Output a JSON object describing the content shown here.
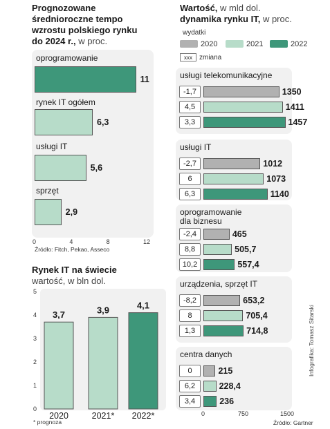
{
  "colors": {
    "y2020": "#b1b1b1",
    "y2021": "#b7dcc9",
    "y2022": "#3e977a",
    "panel": "#f1f1f1"
  },
  "left_top": {
    "title_line1": "Prognozowane",
    "title_line2": "średnioroczne tempo",
    "title_line3": "wzrostu polskiego rynku",
    "title_line4": "do 2024 r.,",
    "title_unit": " w proc.",
    "source": "Źródło: Fitch, Pekao, Asseco"
  },
  "left_bottom": {
    "title": "Rynek IT na świecie",
    "subtitle": "wartość, w bln dol.",
    "footnote": "* prognoza"
  },
  "right": {
    "title_line1": "Wartość,",
    "title_line1_unit": " w mld dol.",
    "title_line2": "dynamika rynku IT,",
    "title_line2_unit": " w proc.",
    "legend_header": "wydatki",
    "legend_2020": "2020",
    "legend_2021": "2021",
    "legend_2022": "2022",
    "legend_change_box": "xxx",
    "legend_change": "zmiana",
    "source": "Źródło: Gartner",
    "credit": "Infografika: Tomasz Sitarski"
  },
  "chart_data": [
    {
      "type": "bar",
      "orientation": "horizontal",
      "title": "Prognozowane średnioroczne tempo wzrostu polskiego rynku do 2024 r., w proc.",
      "categories": [
        "oprogramowanie",
        "rynek IT ogółem",
        "usługi IT",
        "sprzęt"
      ],
      "values": [
        11,
        6.3,
        5.6,
        2.9
      ],
      "value_labels": [
        "11",
        "6,3",
        "5,6",
        "2,9"
      ],
      "xlim": [
        0,
        12
      ],
      "xticks": [
        0,
        4,
        8,
        12
      ],
      "highlight_color": "#3e977a",
      "bar_color": "#b7dcc9"
    },
    {
      "type": "bar",
      "orientation": "vertical",
      "title": "Rynek IT na świecie",
      "subtitle": "wartość, w bln dol.",
      "categories": [
        "2020",
        "2021*",
        "2022*"
      ],
      "values": [
        3.7,
        3.9,
        4.1
      ],
      "value_labels": [
        "3,7",
        "3,9",
        "4,1"
      ],
      "ylim": [
        0,
        5
      ],
      "yticks": [
        0,
        1,
        2,
        3,
        4,
        5
      ],
      "colors": [
        "#b7dcc9",
        "#b7dcc9",
        "#3e977a"
      ]
    },
    {
      "type": "bar",
      "orientation": "horizontal",
      "title": "Wartość, w mld dol. dynamika rynku IT, w proc.",
      "xlim": [
        0,
        1500
      ],
      "xticks": [
        0,
        750,
        1500
      ],
      "series_names": [
        "2020",
        "2021",
        "2022"
      ],
      "groups": [
        {
          "name": "usługi telekomunikacyjne",
          "values": [
            1350,
            1411,
            1457
          ],
          "value_labels": [
            "1350",
            "1411",
            "1457"
          ],
          "changes": [
            "-1,7",
            "4,5",
            "3,3"
          ]
        },
        {
          "name": "usługi IT",
          "values": [
            1012,
            1073,
            1140
          ],
          "value_labels": [
            "1012",
            "1073",
            "1140"
          ],
          "changes": [
            "-2,7",
            "6",
            "6,3"
          ]
        },
        {
          "name_line1": "oprogramowanie",
          "name_line2": "dla biznesu",
          "values": [
            465,
            505.7,
            557.4
          ],
          "value_labels": [
            "465",
            "505,7",
            "557,4"
          ],
          "changes": [
            "-2,4",
            "8,8",
            "10,2"
          ]
        },
        {
          "name": "urządzenia, sprzęt IT",
          "values": [
            653.2,
            705.4,
            714.8
          ],
          "value_labels": [
            "653,2",
            "705,4",
            "714,8"
          ],
          "changes": [
            "-8,2",
            "8",
            "1,3"
          ]
        },
        {
          "name": "centra danych",
          "values": [
            215,
            228.4,
            236
          ],
          "value_labels": [
            "215",
            "228,4",
            "236"
          ],
          "changes": [
            "0",
            "6,2",
            "3,4"
          ]
        }
      ]
    }
  ]
}
